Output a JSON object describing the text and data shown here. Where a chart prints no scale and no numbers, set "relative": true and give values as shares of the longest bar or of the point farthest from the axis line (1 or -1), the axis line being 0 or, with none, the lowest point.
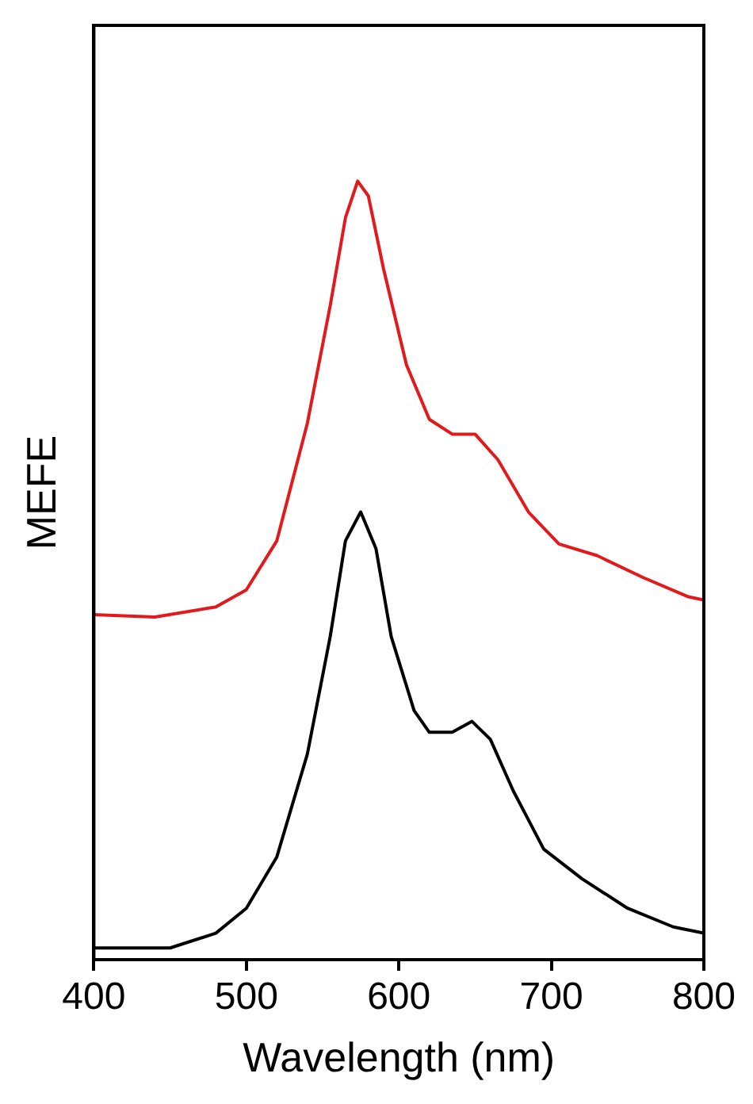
{
  "chart_data": {
    "type": "line",
    "xlabel": "Wavelength (nm)",
    "ylabel": "MEFE",
    "relative": true,
    "xlim": [
      400,
      800
    ],
    "xticks": [
      400,
      500,
      600,
      700,
      800
    ],
    "legend": false,
    "marker": "none",
    "series": [
      {
        "color": "#e31a1c",
        "x": [
          400,
          440,
          480,
          500,
          520,
          540,
          555,
          565,
          573,
          580,
          590,
          605,
          620,
          635,
          650,
          665,
          685,
          705,
          730,
          760,
          790,
          800
        ],
        "values": [
          0.443,
          0.44,
          0.453,
          0.475,
          0.538,
          0.689,
          0.84,
          0.953,
          1,
          0.981,
          0.887,
          0.764,
          0.694,
          0.675,
          0.675,
          0.642,
          0.575,
          0.534,
          0.519,
          0.491,
          0.466,
          0.462
        ]
      },
      {
        "color": "#000000",
        "x": [
          400,
          450,
          480,
          500,
          520,
          540,
          555,
          565,
          575,
          585,
          595,
          610,
          620,
          635,
          648,
          660,
          675,
          695,
          720,
          750,
          780,
          800
        ],
        "values": [
          0.015,
          0.015,
          0.034,
          0.066,
          0.132,
          0.264,
          0.415,
          0.538,
          0.575,
          0.528,
          0.415,
          0.32,
          0.292,
          0.292,
          0.306,
          0.283,
          0.217,
          0.142,
          0.104,
          0.066,
          0.042,
          0.034
        ]
      }
    ]
  }
}
